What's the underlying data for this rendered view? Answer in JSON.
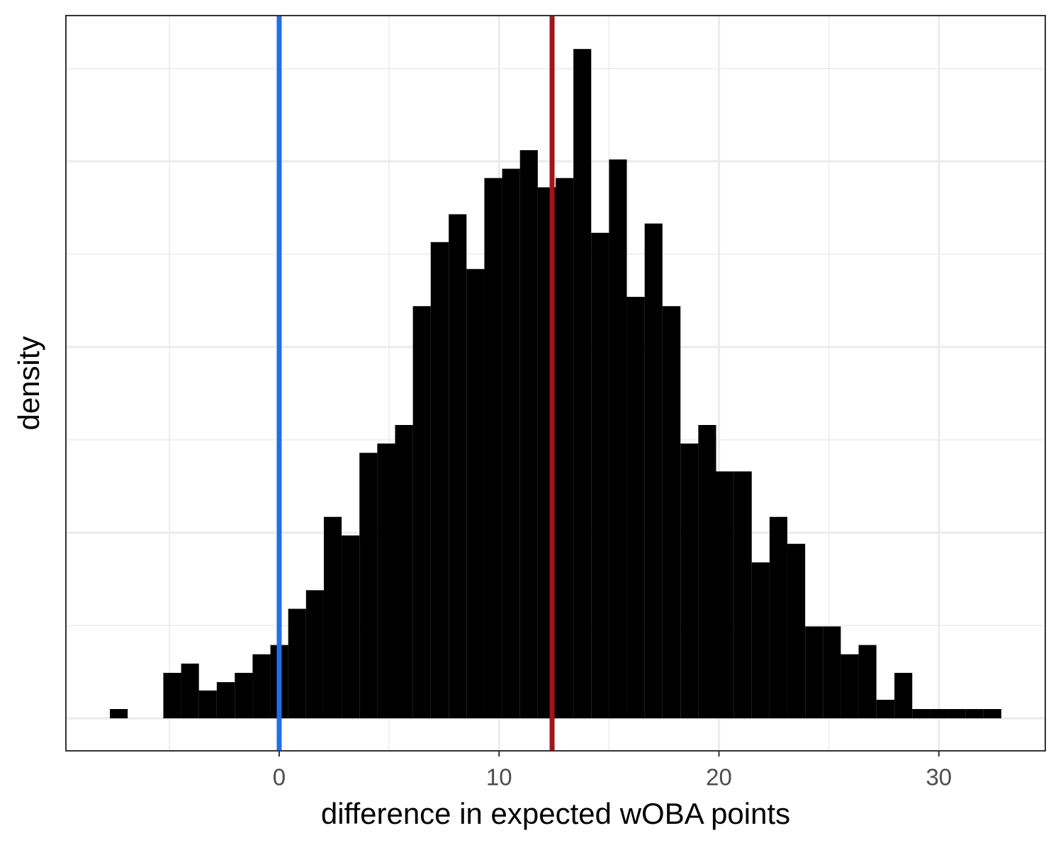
{
  "chart_data": {
    "type": "histogram",
    "x_label": "difference in expected wOBA points",
    "y_label": "density",
    "bins": [
      -7.7,
      -6.89,
      -6.08,
      -5.27,
      -4.46,
      -3.65,
      -2.84,
      -2.02,
      -1.21,
      -0.4,
      0.41,
      1.22,
      2.03,
      2.84,
      3.65,
      4.46,
      5.27,
      6.08,
      6.89,
      7.71,
      8.52,
      9.33,
      10.14,
      10.95,
      11.76,
      12.57,
      13.38,
      14.19,
      15.0,
      15.81,
      16.62,
      17.43,
      18.25,
      19.06,
      19.87,
      20.68,
      21.49,
      22.3,
      23.11,
      23.92,
      24.73,
      25.54,
      26.35,
      27.16,
      27.98,
      28.79,
      29.6,
      30.41,
      31.22,
      32.03,
      32.84
    ],
    "values": [
      0.001,
      0,
      0,
      0.0049,
      0.0059,
      0.003,
      0.0039,
      0.0049,
      0.0069,
      0.0079,
      0.0118,
      0.0138,
      0.0217,
      0.0197,
      0.0286,
      0.0296,
      0.0316,
      0.0444,
      0.0513,
      0.0543,
      0.0484,
      0.0582,
      0.0592,
      0.0612,
      0.0572,
      0.0582,
      0.0721,
      0.0523,
      0.0602,
      0.0454,
      0.0533,
      0.0444,
      0.0296,
      0.0316,
      0.0266,
      0.0266,
      0.0168,
      0.0217,
      0.0188,
      0.0099,
      0.0099,
      0.0069,
      0.0079,
      0.002,
      0.0049,
      0.001,
      0.001,
      0.001,
      0.001,
      0.001
    ],
    "color": "#000000",
    "xlim": [
      -9.7,
      34.84
    ],
    "xticks": [
      0,
      10,
      20,
      30
    ],
    "ylim": [
      -0.0035,
      0.0757
    ],
    "yticks": [
      0,
      0.02,
      0.04,
      0.06
    ],
    "grid": true,
    "vlines": [
      {
        "value": 0,
        "color": "#1f6fe8"
      },
      {
        "value": 12.41,
        "color": "#a3141a"
      }
    ]
  }
}
